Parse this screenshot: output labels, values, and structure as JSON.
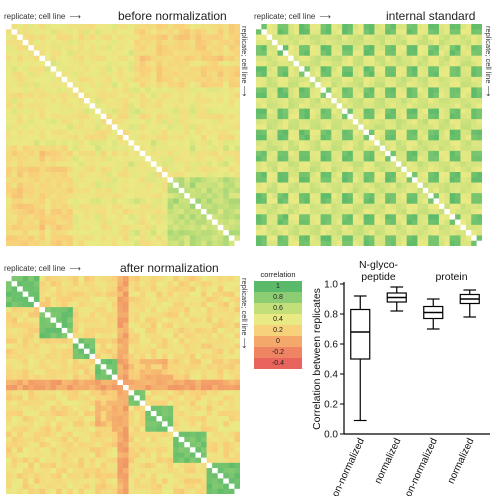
{
  "heatmaps": [
    {
      "id": "before",
      "title": "before normalization",
      "rep_label": "replicate; cell line",
      "side_label": "replicate; cell line",
      "pattern": "before"
    },
    {
      "id": "internal",
      "title": "internal standard",
      "rep_label": "replicate; cell line",
      "side_label": "replicate; cell line",
      "pattern": "internal"
    },
    {
      "id": "after",
      "title": "after normalization",
      "rep_label": "replicate; cell line",
      "side_label": "replicate; cell line",
      "pattern": "after"
    }
  ],
  "legend": {
    "title": "correlation",
    "values": [
      "1",
      "0.8",
      "0.6",
      "0.4",
      "0.2",
      "0",
      "-0.2",
      "-0.4"
    ],
    "colors": [
      "#5aba6a",
      "#8ccc72",
      "#c2df7a",
      "#eaea84",
      "#f8d27a",
      "#f4a86a",
      "#ee8462",
      "#e8645c"
    ]
  },
  "chart_data": {
    "type": "box",
    "ylabel": "Correlation between replicates",
    "ylim": [
      0,
      1.0
    ],
    "yticks": [
      "0.0",
      "0.2",
      "0.4",
      "0.6",
      "0.8",
      "1.0"
    ],
    "group_labels": [
      "N-glyco-",
      "peptide",
      "protein"
    ],
    "categories": [
      "non-normalized",
      "normalized",
      "non-normalized",
      "normalized"
    ],
    "boxes": [
      {
        "min": 0.09,
        "q1": 0.5,
        "median": 0.68,
        "q3": 0.83,
        "max": 0.92
      },
      {
        "min": 0.82,
        "q1": 0.88,
        "median": 0.91,
        "q3": 0.94,
        "max": 0.98
      },
      {
        "min": 0.7,
        "q1": 0.77,
        "median": 0.81,
        "q3": 0.85,
        "max": 0.9
      },
      {
        "min": 0.78,
        "q1": 0.87,
        "median": 0.9,
        "q3": 0.93,
        "max": 0.96
      }
    ]
  }
}
